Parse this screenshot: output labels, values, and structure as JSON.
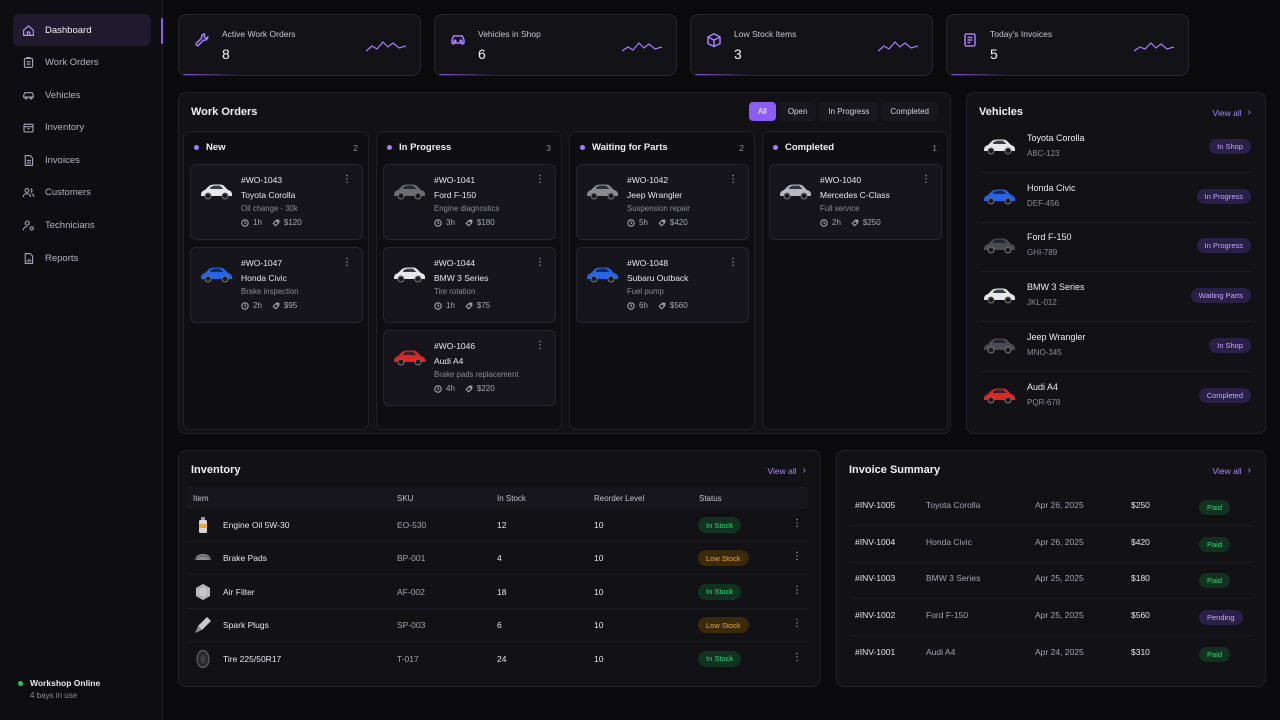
{
  "sidebar": {
    "items": [
      {
        "label": "Dashboard",
        "icon": "home-icon",
        "active": true
      },
      {
        "label": "Work Orders",
        "icon": "clipboard-icon"
      },
      {
        "label": "Vehicles",
        "icon": "car-icon"
      },
      {
        "label": "Inventory",
        "icon": "box-icon"
      },
      {
        "label": "Invoices",
        "icon": "document-icon"
      },
      {
        "label": "Customers",
        "icon": "users-icon"
      },
      {
        "label": "Technicians",
        "icon": "user-gear-icon"
      },
      {
        "label": "Reports",
        "icon": "report-icon"
      }
    ],
    "status": {
      "label": "Workshop Online",
      "sub": "4 bays in use"
    }
  },
  "stats": [
    {
      "label": "Active Work Orders",
      "value": "8",
      "icon": "wrench-icon"
    },
    {
      "label": "Vehicles in Shop",
      "value": "6",
      "icon": "car-icon"
    },
    {
      "label": "Low Stock Items",
      "value": "3",
      "icon": "cube-icon"
    },
    {
      "label": "Today's Invoices",
      "value": "5",
      "icon": "invoice-icon"
    }
  ],
  "work_orders": {
    "title": "Work Orders",
    "filters": [
      "All",
      "Open",
      "In Progress",
      "Completed"
    ],
    "columns": [
      {
        "title": "New",
        "count": "2",
        "cards": [
          {
            "id": "#WO-1043",
            "model": "Toyota Corolla",
            "desc": "Oil change - 30k",
            "hours": "1h",
            "price": "$120",
            "color": "#e8e8ec"
          },
          {
            "id": "#WO-1047",
            "model": "Honda Civic",
            "desc": "Brake inspection",
            "hours": "2h",
            "price": "$95",
            "color": "#2563eb"
          }
        ]
      },
      {
        "title": "In Progress",
        "count": "3",
        "cards": [
          {
            "id": "#WO-1041",
            "model": "Ford F-150",
            "desc": "Engine diagnostics",
            "hours": "3h",
            "price": "$180",
            "color": "#6b6b70"
          },
          {
            "id": "#WO-1044",
            "model": "BMW 3 Series",
            "desc": "Tire rotation",
            "hours": "1h",
            "price": "$75",
            "color": "#e8e8ec"
          },
          {
            "id": "#WO-1046",
            "model": "Audi A4",
            "desc": "Brake pads replacement",
            "hours": "4h",
            "price": "$220",
            "color": "#dc2626"
          }
        ]
      },
      {
        "title": "Waiting for Parts",
        "count": "2",
        "cards": [
          {
            "id": "#WO-1042",
            "model": "Jeep Wrangler",
            "desc": "Suspension repair",
            "hours": "5h",
            "price": "$420",
            "color": "#8a8a8f"
          },
          {
            "id": "#WO-1048",
            "model": "Subaru Outback",
            "desc": "Fuel pump",
            "hours": "6h",
            "price": "$560",
            "color": "#2563eb"
          }
        ]
      },
      {
        "title": "Completed",
        "count": "1",
        "cards": [
          {
            "id": "#WO-1040",
            "model": "Mercedes C-Class",
            "desc": "Full service",
            "hours": "2h",
            "price": "$250",
            "color": "#b8b8bf"
          }
        ]
      }
    ]
  },
  "vehicles": {
    "title": "Vehicles",
    "view_all": "View all",
    "items": [
      {
        "name": "Toyota Corolla",
        "plate": "ABC-123",
        "status": "In Shop",
        "color": "#e8e8ec"
      },
      {
        "name": "Honda Civic",
        "plate": "DEF-456",
        "status": "In Progress",
        "color": "#2563eb"
      },
      {
        "name": "Ford F-150",
        "plate": "GHI-789",
        "status": "In Progress",
        "color": "#4b4b50"
      },
      {
        "name": "BMW 3 Series",
        "plate": "JKL-012",
        "status": "Waiting Parts",
        "color": "#e8e8ec"
      },
      {
        "name": "Jeep Wrangler",
        "plate": "MNO-345",
        "status": "In Shop",
        "color": "#4b4b50"
      },
      {
        "name": "Audi A4",
        "plate": "PQR-678",
        "status": "Completed",
        "color": "#dc2626"
      }
    ]
  },
  "inventory": {
    "title": "Inventory",
    "view_all": "View all",
    "headers": [
      "Item",
      "SKU",
      "In Stock",
      "Reorder Level",
      "Status"
    ],
    "rows": [
      {
        "item": "Engine Oil 5W-30",
        "sku": "EO-530",
        "stock": "12",
        "reorder": "10",
        "status": "In Stock",
        "level": "in",
        "icon": "oil-bottle-icon"
      },
      {
        "item": "Brake Pads",
        "sku": "BP-001",
        "stock": "4",
        "reorder": "10",
        "status": "Low Stock",
        "level": "low",
        "icon": "brake-pad-icon"
      },
      {
        "item": "Air Filter",
        "sku": "AF-002",
        "stock": "18",
        "reorder": "10",
        "status": "In Stock",
        "level": "in",
        "icon": "air-filter-icon"
      },
      {
        "item": "Spark Plugs",
        "sku": "SP-003",
        "stock": "6",
        "reorder": "10",
        "status": "Low Stock",
        "level": "low",
        "icon": "spark-plug-icon"
      },
      {
        "item": "Tire 225/50R17",
        "sku": "T-017",
        "stock": "24",
        "reorder": "10",
        "status": "In Stock",
        "level": "in",
        "icon": "tire-icon"
      }
    ]
  },
  "invoices": {
    "title": "Invoice Summary",
    "view_all": "View all",
    "rows": [
      {
        "id": "#INV-1005",
        "vehicle": "Toyota Corolla",
        "date": "Apr 26, 2025",
        "amount": "$250",
        "status": "Paid",
        "kind": "paid"
      },
      {
        "id": "#INV-1004",
        "vehicle": "Honda Civic",
        "date": "Apr 26, 2025",
        "amount": "$420",
        "status": "Paid",
        "kind": "paid"
      },
      {
        "id": "#INV-1003",
        "vehicle": "BMW 3 Series",
        "date": "Apr 25, 2025",
        "amount": "$180",
        "status": "Paid",
        "kind": "paid"
      },
      {
        "id": "#INV-1002",
        "vehicle": "Ford F-150",
        "date": "Apr 25, 2025",
        "amount": "$560",
        "status": "Pending",
        "kind": "pending"
      },
      {
        "id": "#INV-1001",
        "vehicle": "Audi A4",
        "date": "Apr 24, 2025",
        "amount": "$310",
        "status": "Paid",
        "kind": "paid"
      }
    ]
  },
  "colors": {
    "accent": "#8b5cf6",
    "success": "#34d77a",
    "warning": "#f0a72b",
    "background": "#0b0b0e"
  }
}
